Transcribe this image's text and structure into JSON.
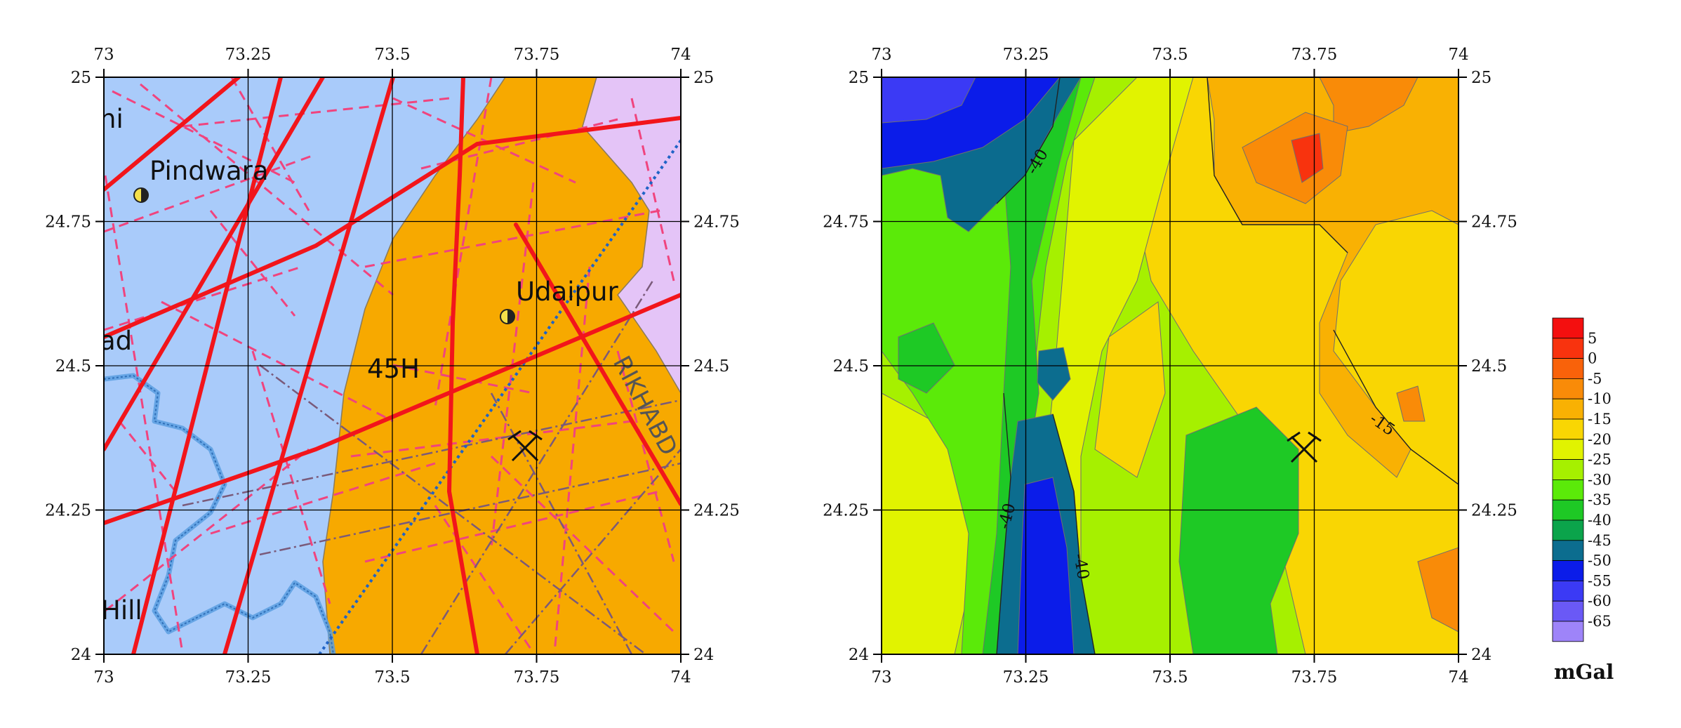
{
  "axes": {
    "lon_ticks": [
      "73",
      "73.25",
      "73.5",
      "73.75",
      "74"
    ],
    "lat_ticks": [
      "25",
      "24.75",
      "24.5",
      "24.25",
      "24"
    ],
    "lon_range": [
      73,
      74
    ],
    "lat_range": [
      24,
      25
    ]
  },
  "geology_map": {
    "labels": {
      "pindwara": "Pindwara",
      "udaipur": "Udaipur",
      "zone": "45H",
      "rikhab": "RIKHABD",
      "hill": "Hill",
      "ad": "ad",
      "hi": "hi"
    },
    "colors": {
      "blue_unit": "#a9cbfa",
      "orange_unit": "#f7a900",
      "pink_unit": "#e4c4f7",
      "major_fault": "#f2151b",
      "minor_lineament": "#f0447e",
      "river": "#5b9fe0",
      "dotted_line": "#1f63c6",
      "dashdot_line": "#7a5a7a"
    },
    "towns": [
      {
        "name": "Pindwara",
        "lon": 73.065,
        "lat": 24.795
      },
      {
        "name": "Udaipur",
        "lon": 73.7,
        "lat": 24.585
      }
    ],
    "mine_site": {
      "lon": 73.73,
      "lat": 24.35
    }
  },
  "gravity_map": {
    "contour_labels": [
      "-40",
      "-40",
      "-40",
      "-15"
    ],
    "mine_site": {
      "lon": 73.73,
      "lat": 24.35
    }
  },
  "colorbar": {
    "unit": "mGal",
    "levels": [
      "5",
      "0",
      "-5",
      "-10",
      "-15",
      "-20",
      "-25",
      "-30",
      "-35",
      "-40",
      "-45",
      "-50",
      "-55",
      "-60",
      "-65"
    ],
    "colors": [
      "#f40f0f",
      "#f8330e",
      "#f9620a",
      "#f98b08",
      "#f9b103",
      "#f9d603",
      "#e1f300",
      "#a6f000",
      "#5bea09",
      "#1ec925",
      "#0ba44b",
      "#0c6d8f",
      "#0b1ce9",
      "#3b3af5",
      "#6a59f6",
      "#9e84f9"
    ]
  },
  "chart_data": [
    {
      "type": "map",
      "name_printed": "",
      "xlim": [
        73,
        74
      ],
      "ylim": [
        24,
        25
      ],
      "points": [
        {
          "label": "Pindwara",
          "x": 73.065,
          "y": 24.795
        },
        {
          "label": "Udaipur",
          "x": 73.7,
          "y": 24.585
        }
      ]
    },
    {
      "type": "heatmap",
      "xlim": [
        73,
        74
      ],
      "ylim": [
        24,
        25
      ],
      "unit": "mGal",
      "zmin": -65,
      "zmax": 10,
      "contour_levels_labeled": [
        -40,
        -15
      ]
    }
  ]
}
